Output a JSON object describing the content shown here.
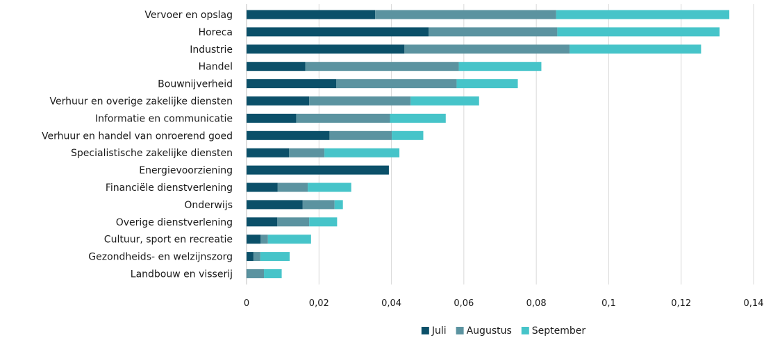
{
  "chart_data": {
    "type": "bar",
    "orientation": "horizontal",
    "stacked": true,
    "categories": [
      "Vervoer en opslag",
      "Horeca",
      "Industrie",
      "Handel",
      "Bouwnijverheid",
      "Verhuur en overige zakelijke diensten",
      "Informatie en communicatie",
      "Verhuur en handel van onroerend goed",
      "Specialistische zakelijke diensten",
      "Energievoorziening",
      "Financiële dienstverlening",
      "Onderwijs",
      "Overige dienstverlening",
      "Cultuur, sport en recreatie",
      "Gezondheids- en welzijnszorg",
      "Landbouw en visserij"
    ],
    "series": [
      {
        "name": "Juli",
        "color": "#0b5069",
        "values": [
          0.0355,
          0.0503,
          0.0436,
          0.0162,
          0.0248,
          0.0173,
          0.0137,
          0.0229,
          0.0117,
          0.0393,
          0.0086,
          0.0155,
          0.0085,
          0.0039,
          0.0019,
          0.0001
        ]
      },
      {
        "name": "Augustus",
        "color": "#5b93a0",
        "values": [
          0.05,
          0.0355,
          0.0456,
          0.0424,
          0.0332,
          0.028,
          0.0259,
          0.0172,
          0.0098,
          0.0,
          0.0083,
          0.0088,
          0.0088,
          0.002,
          0.0019,
          0.0047
        ]
      },
      {
        "name": "September",
        "color": "#46c4c9",
        "values": [
          0.0478,
          0.0448,
          0.0363,
          0.0228,
          0.0169,
          0.0189,
          0.0154,
          0.0087,
          0.0207,
          0.0,
          0.012,
          0.0023,
          0.0077,
          0.0119,
          0.0081,
          0.0049
        ]
      }
    ],
    "xlim": [
      0,
      0.14
    ],
    "xticks": [
      0,
      0.02,
      0.04,
      0.06,
      0.08,
      0.1,
      0.12,
      0.14
    ],
    "xtick_labels": [
      "0",
      "0,02",
      "0,04",
      "0,06",
      "0,08",
      "0,1",
      "0,12",
      "0,14"
    ],
    "title": "",
    "xlabel": "",
    "ylabel": "",
    "grid": "vertical",
    "legend_position": "bottom-center"
  }
}
